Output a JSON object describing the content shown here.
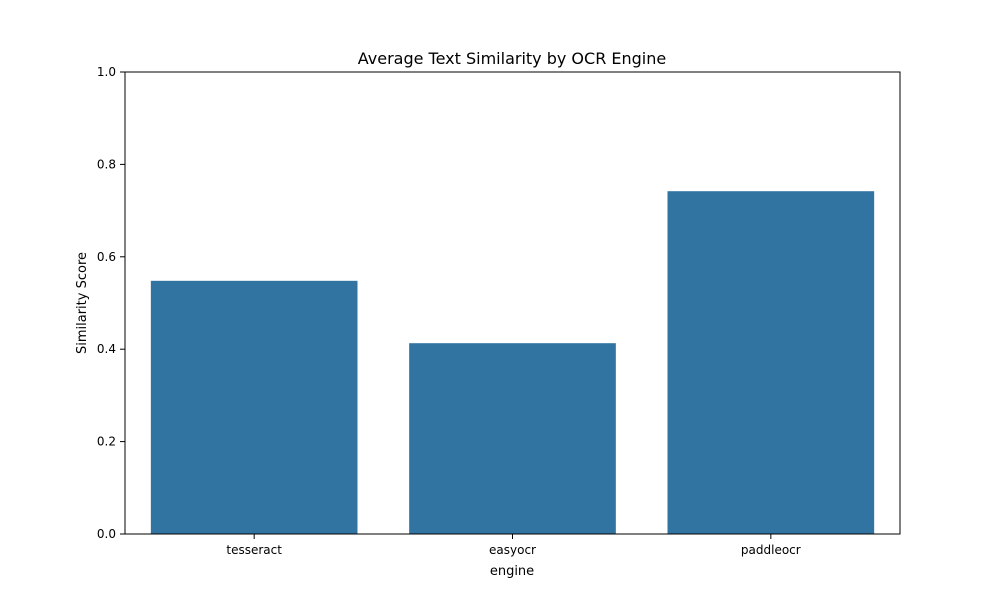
{
  "chart_data": {
    "type": "bar",
    "title": "Average Text Similarity by OCR Engine",
    "xlabel": "engine",
    "ylabel": "Similarity Score",
    "categories": [
      "tesseract",
      "easyocr",
      "paddleocr"
    ],
    "values": [
      0.548,
      0.413,
      0.742
    ],
    "ylim": [
      0,
      1
    ],
    "yticks": [
      "0.0",
      "0.2",
      "0.4",
      "0.6",
      "0.8",
      "1.0"
    ],
    "grid": false,
    "legend": "none",
    "bar_color": "#3274a1"
  }
}
